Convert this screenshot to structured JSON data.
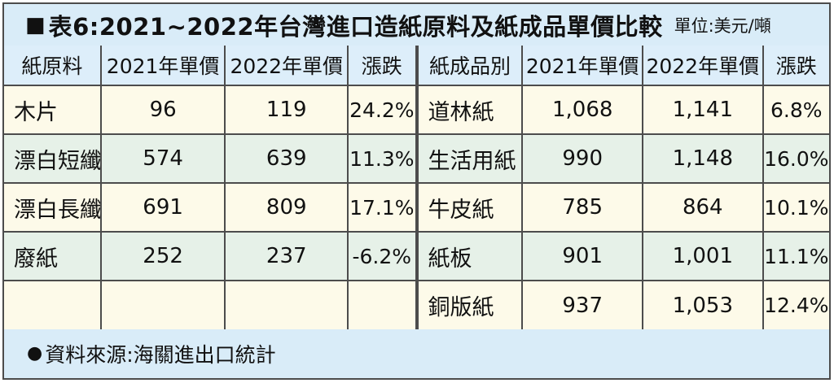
{
  "title": {
    "marker": "■",
    "text": "表6:2021~2022年台灣進口造紙原料及紙成品單價比較",
    "unit": "單位:美元/噸"
  },
  "footer": {
    "marker": "●",
    "text": "資料來源:海關進出口統計"
  },
  "chart_data": {
    "type": "table",
    "title": "表6:2021~2022年台灣進口造紙原料及紙成品單價比較",
    "unit": "美元/噸",
    "left_table": {
      "name": "紙原料 (paper raw materials)",
      "headers": [
        "紙原料",
        "2021年單價",
        "2022年單價",
        "漲跌"
      ],
      "rows": [
        [
          "木片",
          "96",
          "119",
          "24.2%"
        ],
        [
          "漂白短纖",
          "574",
          "639",
          "11.3%"
        ],
        [
          "漂白長纖",
          "691",
          "809",
          "17.1%"
        ],
        [
          "廢紙",
          "252",
          "237",
          "-6.2%"
        ],
        [
          "",
          "",
          "",
          ""
        ]
      ]
    },
    "right_table": {
      "name": "紙成品別 (paper products)",
      "headers": [
        "紙成品別",
        "2021年單價",
        "2022年單價",
        "漲跌"
      ],
      "rows": [
        [
          "道林紙",
          "1,068",
          "1,141",
          "6.8%"
        ],
        [
          "生活用紙",
          "990",
          "1,148",
          "16.0%"
        ],
        [
          "牛皮紙",
          "785",
          "864",
          "10.1%"
        ],
        [
          "紙板",
          "901",
          "1,001",
          "11.1%"
        ],
        [
          "銅版紙",
          "937",
          "1,053",
          "12.4%"
        ]
      ]
    },
    "source": "海關進出口統計"
  },
  "colors": {
    "panel_blue": "#d9ecf8",
    "header_blue": "#ddeefa",
    "row_cream": "#fdfae9",
    "row_green": "#e6f1e8",
    "border": "#4c4c4c",
    "text": "#111111"
  }
}
